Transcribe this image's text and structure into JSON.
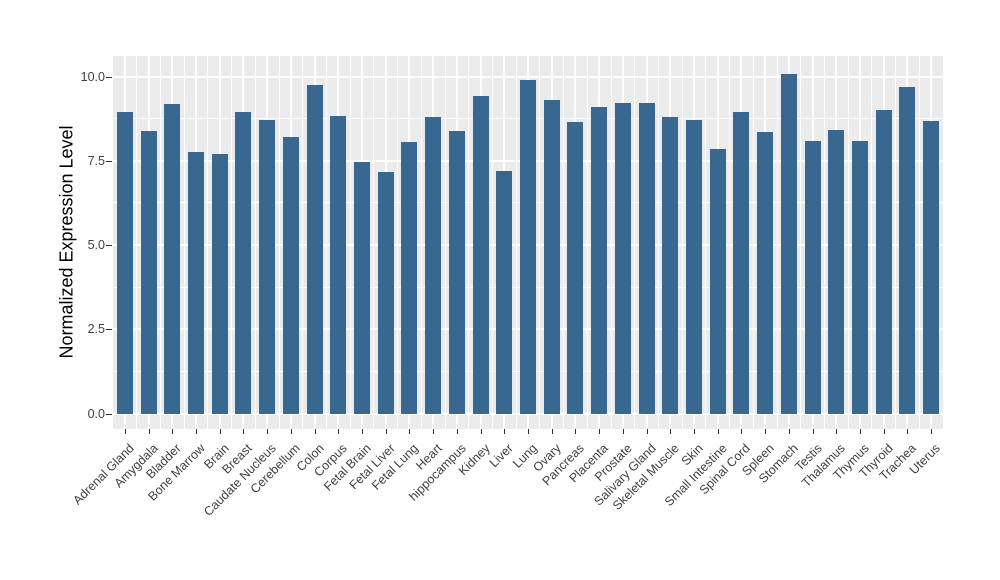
{
  "chart_data": {
    "type": "bar",
    "title": "",
    "xlabel": "",
    "ylabel": "Normalized Expression Level",
    "categories": [
      "Adrenal Gland",
      "Amygdala",
      "Bladder",
      "Bone Marrow",
      "Brain",
      "Breast",
      "Caudate Nucleus",
      "Cerebellum",
      "Colon",
      "Corpus",
      "Fetal Brain",
      "Fetal Liver",
      "Fetal Lung",
      "Heart",
      "hippocampus",
      "Kidney",
      "Liver",
      "Lung",
      "Ovary",
      "Pancreas",
      "Placenta",
      "Prostate",
      "Salivary Gland",
      "Skeletal Muscle",
      "Skin",
      "Small Intestine",
      "Spinal Cord",
      "Spleen",
      "Stomach",
      "Testis",
      "Thalamus",
      "Thymus",
      "Thyroid",
      "Trachea",
      "Uterus"
    ],
    "values": [
      8.94,
      8.37,
      9.17,
      7.76,
      7.69,
      8.96,
      8.71,
      8.21,
      9.76,
      8.83,
      7.45,
      7.17,
      8.06,
      8.79,
      8.38,
      9.42,
      7.2,
      9.89,
      9.31,
      8.65,
      9.09,
      9.2,
      9.22,
      8.81,
      8.72,
      7.84,
      8.96,
      8.36,
      10.08,
      8.09,
      8.4,
      8.09,
      9.01,
      9.68,
      8.67
    ],
    "yticks": {
      "values": [
        0,
        2.5,
        5,
        7.5,
        10
      ],
      "labels": [
        "0.0",
        "2.5",
        "5.0",
        "7.5",
        "10.0"
      ]
    },
    "yticks_minor": [
      1.25,
      3.75,
      6.25,
      8.75
    ],
    "ylim": [
      -0.46,
      10.61
    ],
    "grid": "on",
    "legend": "none",
    "style": {
      "bar_color": "#38678F",
      "panel_bg": "#EBEBEB",
      "grid_color": "#FFFFFF",
      "tick_color": "#333333",
      "tick_label_color": "#404040",
      "axis_title_color": "#000000"
    }
  }
}
